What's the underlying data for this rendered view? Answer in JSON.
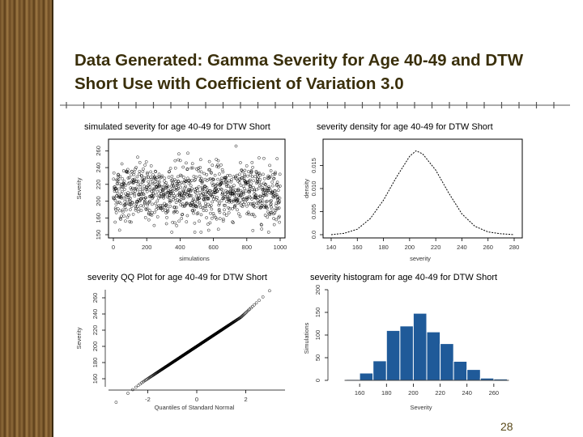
{
  "slide": {
    "title": "Data Generated: Gamma Severity for Age 40-49 and DTW Short Use with Coefficient of Variation 3.0",
    "page_number": "28"
  },
  "colors": {
    "accent_title": "#3a2f0b",
    "histogram_fill": "#1f5a99",
    "stripe": "#7a5a30"
  },
  "chart_data": [
    {
      "type": "scatter",
      "title": "simulated severity for age 40-49 for DTW Short",
      "xlabel": "simulations",
      "ylabel": "Severity",
      "xlim": [
        0,
        1000
      ],
      "ylim": [
        150,
        260
      ],
      "xticks": [
        "0",
        "200",
        "400",
        "600",
        "800",
        "1000"
      ],
      "yticks": [
        "150",
        "160",
        "200",
        "220",
        "240",
        "260"
      ],
      "n_points": 1000,
      "center": 200,
      "spread": 17
    },
    {
      "type": "line",
      "title": "severity density for age 40-49 for DTW Short",
      "xlabel": "severity",
      "ylabel": "density",
      "xlim": [
        140,
        280
      ],
      "ylim": [
        0,
        0.02
      ],
      "xticks": [
        "140",
        "160",
        "180",
        "200",
        "220",
        "240",
        "260",
        "280"
      ],
      "yticks": [
        "0.0",
        "0.005",
        "0.010",
        "0.015"
      ],
      "x": [
        140,
        150,
        160,
        170,
        180,
        190,
        200,
        205,
        210,
        220,
        230,
        240,
        250,
        260,
        270,
        280
      ],
      "y": [
        0.0,
        0.0003,
        0.0012,
        0.0035,
        0.0075,
        0.0125,
        0.017,
        0.0182,
        0.0175,
        0.014,
        0.009,
        0.0045,
        0.0018,
        0.0006,
        0.0002,
        0.0
      ]
    },
    {
      "type": "scatter",
      "title": "severity QQ Plot for age 40-49 for DTW Short",
      "xlabel": "Quantiles of Standard Normal",
      "ylabel": "Severity",
      "xlim": [
        -3.6,
        3.6
      ],
      "ylim": [
        150,
        270
      ],
      "xticks": [
        "-2",
        "0",
        "2"
      ],
      "yticks": [
        "160",
        "180",
        "200",
        "220",
        "240",
        "260"
      ],
      "n_points": 1000,
      "mean": 200,
      "sd": 20
    },
    {
      "type": "bar",
      "title": "severity histogram for age 40-49 for DTW Short",
      "xlabel": "Severity",
      "ylabel": "Simulations",
      "xlim": [
        140,
        280
      ],
      "ylim": [
        0,
        200
      ],
      "xticks": [
        "160",
        "180",
        "200",
        "220",
        "240",
        "260"
      ],
      "yticks": [
        "0",
        "50",
        "100",
        "150",
        "200"
      ],
      "bin_edges": [
        150,
        160,
        170,
        180,
        190,
        200,
        210,
        220,
        230,
        240,
        250,
        260,
        270
      ],
      "values": [
        2,
        16,
        43,
        110,
        120,
        148,
        107,
        81,
        42,
        24,
        5,
        3
      ]
    }
  ]
}
